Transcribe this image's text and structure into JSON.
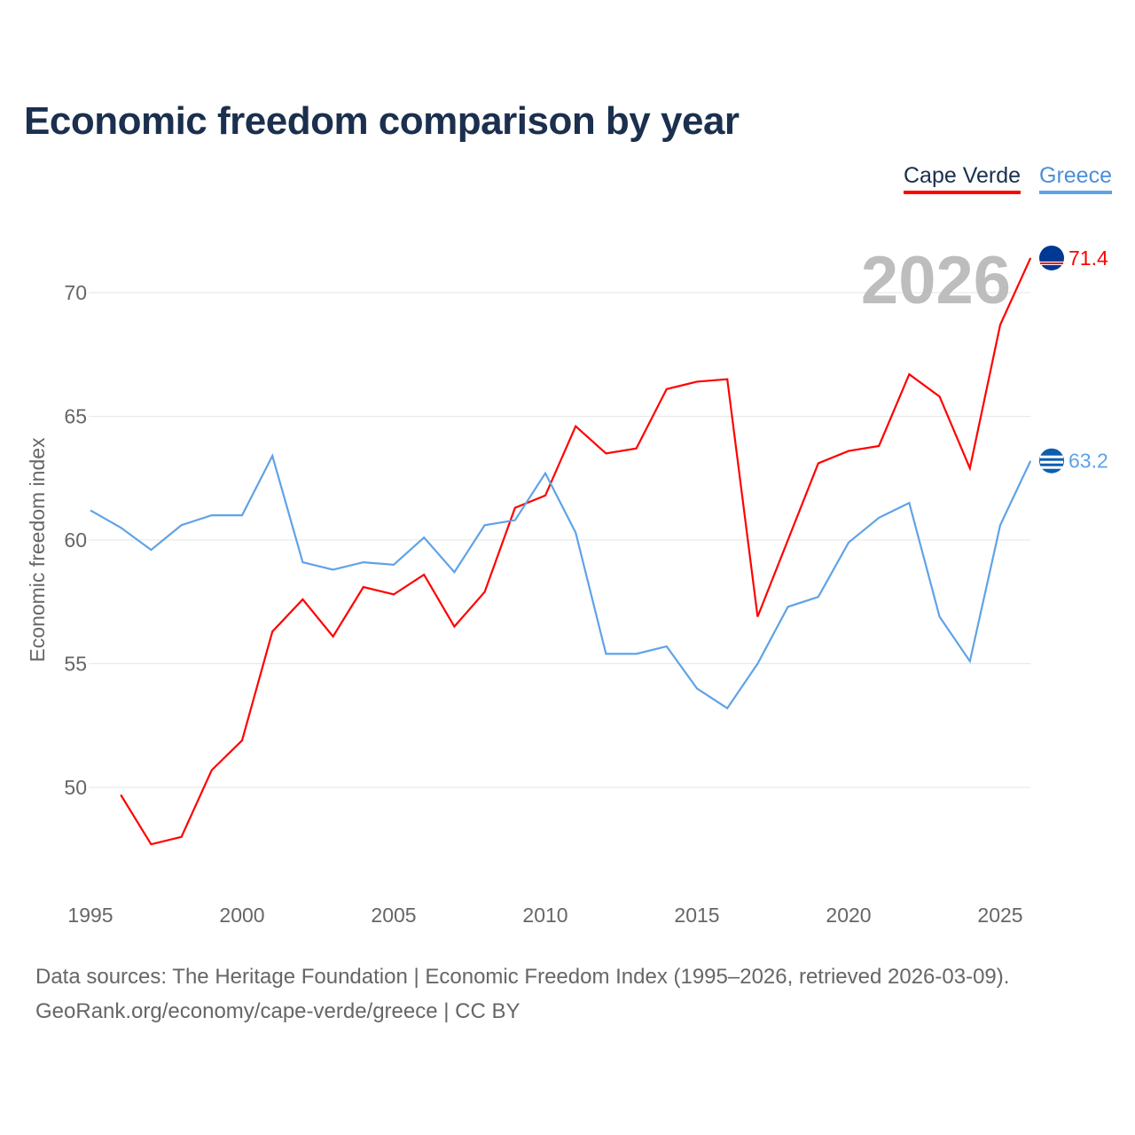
{
  "title": "Economic freedom comparison by year",
  "legend": [
    {
      "name": "Cape Verde",
      "color": "#ff0000",
      "text_color": "#1b2f4e"
    },
    {
      "name": "Greece",
      "color": "#5fa3e6",
      "text_color": "#4a90d9"
    }
  ],
  "year_label": "2026",
  "sources": {
    "line1": "Data sources: The Heritage Foundation | Economic Freedom Index (1995–2026, retrieved 2026-03-09).",
    "line2": "GeoRank.org/economy/cape-verde/greece | CC BY"
  },
  "chart_data": {
    "type": "line",
    "title": "Economic freedom comparison by year",
    "xlabel": "",
    "ylabel": "Economic freedom index",
    "xlim": [
      1995,
      2026
    ],
    "ylim": [
      45,
      72
    ],
    "xticks": [
      1995,
      2000,
      2005,
      2010,
      2015,
      2020,
      2025
    ],
    "yticks": [
      50,
      55,
      60,
      65,
      70
    ],
    "grid": true,
    "legend_position": "top-right",
    "series": [
      {
        "name": "Cape Verde",
        "color": "#ff0000",
        "end_label": "71.4",
        "start": 1996,
        "values": [
          49.7,
          47.7,
          48.0,
          50.7,
          51.9,
          56.3,
          57.6,
          56.1,
          58.1,
          57.8,
          58.6,
          56.5,
          57.9,
          61.3,
          61.8,
          64.6,
          63.5,
          63.7,
          66.1,
          66.4,
          66.5,
          56.9,
          60.0,
          63.1,
          63.6,
          63.8,
          66.7,
          65.8,
          62.9,
          68.7,
          71.4
        ]
      },
      {
        "name": "Greece",
        "color": "#5fa3e6",
        "end_label": "63.2",
        "start": 1995,
        "values": [
          61.2,
          60.5,
          59.6,
          60.6,
          61.0,
          61.0,
          63.4,
          59.1,
          58.8,
          59.1,
          59.0,
          60.1,
          58.7,
          60.6,
          60.8,
          62.7,
          60.3,
          55.4,
          55.4,
          55.7,
          54.0,
          53.2,
          55.0,
          57.3,
          57.7,
          59.9,
          60.9,
          61.5,
          56.9,
          55.1,
          60.6,
          63.2
        ]
      }
    ]
  }
}
